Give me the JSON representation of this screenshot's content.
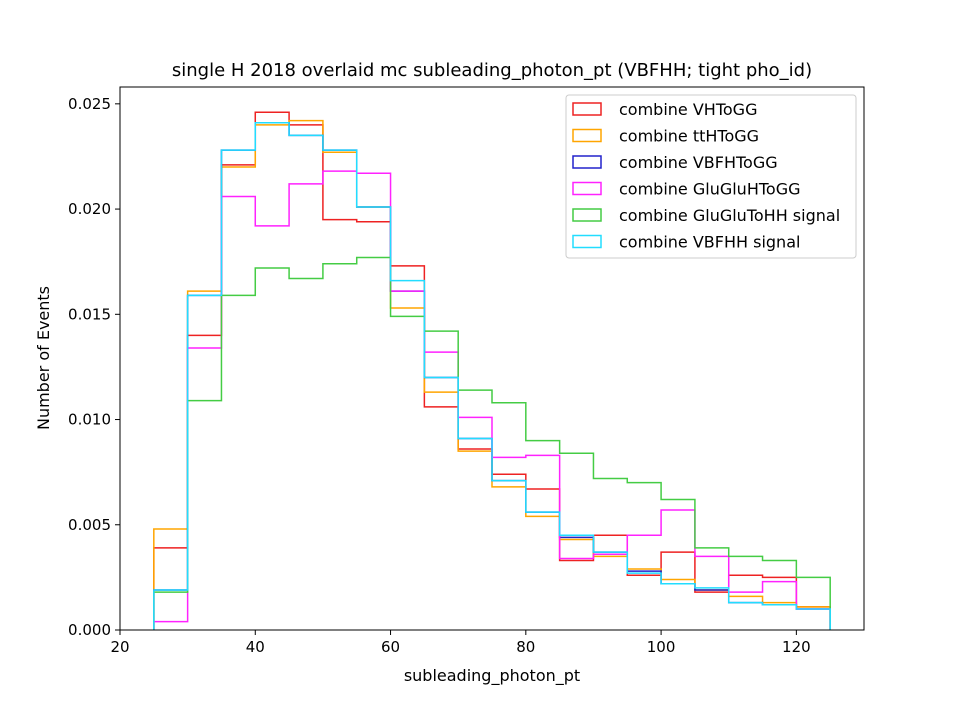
{
  "chart_data": {
    "type": "line",
    "subtype": "step-histogram",
    "title": "single H 2018 overlaid mc subleading_photon_pt (VBFHH; tight pho_id)",
    "xlabel": "subleading_photon_pt",
    "ylabel": "Number of Events",
    "xlim": [
      20,
      130
    ],
    "ylim": [
      0,
      0.0258
    ],
    "xticks": [
      20,
      40,
      60,
      80,
      100,
      120
    ],
    "yticks": [
      0.0,
      0.005,
      0.01,
      0.015,
      0.02,
      0.025
    ],
    "ytick_labels": [
      "0.000",
      "0.005",
      "0.010",
      "0.015",
      "0.020",
      "0.025"
    ],
    "grid": false,
    "legend_position": "upper-right",
    "bin_edges": [
      25,
      30,
      35,
      40,
      45,
      50,
      55,
      60,
      65,
      70,
      75,
      80,
      85,
      90,
      95,
      100,
      105,
      110,
      115,
      120,
      125
    ],
    "series": [
      {
        "name": "combine VHToGG",
        "color": "#ee2222",
        "values": [
          0.0039,
          0.014,
          0.0221,
          0.0246,
          0.024,
          0.0195,
          0.0194,
          0.0173,
          0.0106,
          0.0086,
          0.0074,
          0.0067,
          0.0033,
          0.0045,
          0.0026,
          0.0037,
          0.0018,
          0.0026,
          0.0025,
          0.0011
        ]
      },
      {
        "name": "combine ttHToGG",
        "color": "#ffa500",
        "values": [
          0.0048,
          0.0161,
          0.022,
          0.024,
          0.0242,
          0.0227,
          0.0201,
          0.0153,
          0.0113,
          0.0085,
          0.0068,
          0.0054,
          0.0043,
          0.0035,
          0.0029,
          0.0024,
          0.0019,
          0.0016,
          0.0013,
          0.0011
        ]
      },
      {
        "name": "combine VBFHToGG",
        "color": "#2222cc",
        "values": [
          0.0019,
          0.0159,
          0.0228,
          0.0241,
          0.0235,
          0.0228,
          0.0201,
          0.0161,
          0.012,
          0.0091,
          0.0071,
          0.0056,
          0.0044,
          0.0037,
          0.0028,
          0.0022,
          0.0019,
          0.0013,
          0.0012,
          0.001
        ]
      },
      {
        "name": "combine GluGluHToGG",
        "color": "#ff22ff",
        "values": [
          0.0004,
          0.0134,
          0.0206,
          0.0192,
          0.0212,
          0.0218,
          0.0217,
          0.0161,
          0.0132,
          0.0101,
          0.0082,
          0.0083,
          0.0034,
          0.0036,
          0.0045,
          0.0057,
          0.0035,
          0.0018,
          0.0023,
          0.001
        ]
      },
      {
        "name": "combine GluGluToHH signal",
        "color": "#44cc44",
        "values": [
          0.0018,
          0.0109,
          0.0159,
          0.0172,
          0.0167,
          0.0174,
          0.0177,
          0.0149,
          0.0142,
          0.0114,
          0.0108,
          0.009,
          0.0084,
          0.0072,
          0.007,
          0.0062,
          0.0039,
          0.0035,
          0.0033,
          0.0025
        ]
      },
      {
        "name": "combine VBFHH signal",
        "color": "#22ddff",
        "values": [
          0.0019,
          0.0159,
          0.0228,
          0.0241,
          0.0235,
          0.0228,
          0.0201,
          0.0166,
          0.012,
          0.0091,
          0.0071,
          0.0056,
          0.0045,
          0.0037,
          0.0027,
          0.0022,
          0.002,
          0.0013,
          0.0012,
          0.001
        ]
      }
    ]
  }
}
